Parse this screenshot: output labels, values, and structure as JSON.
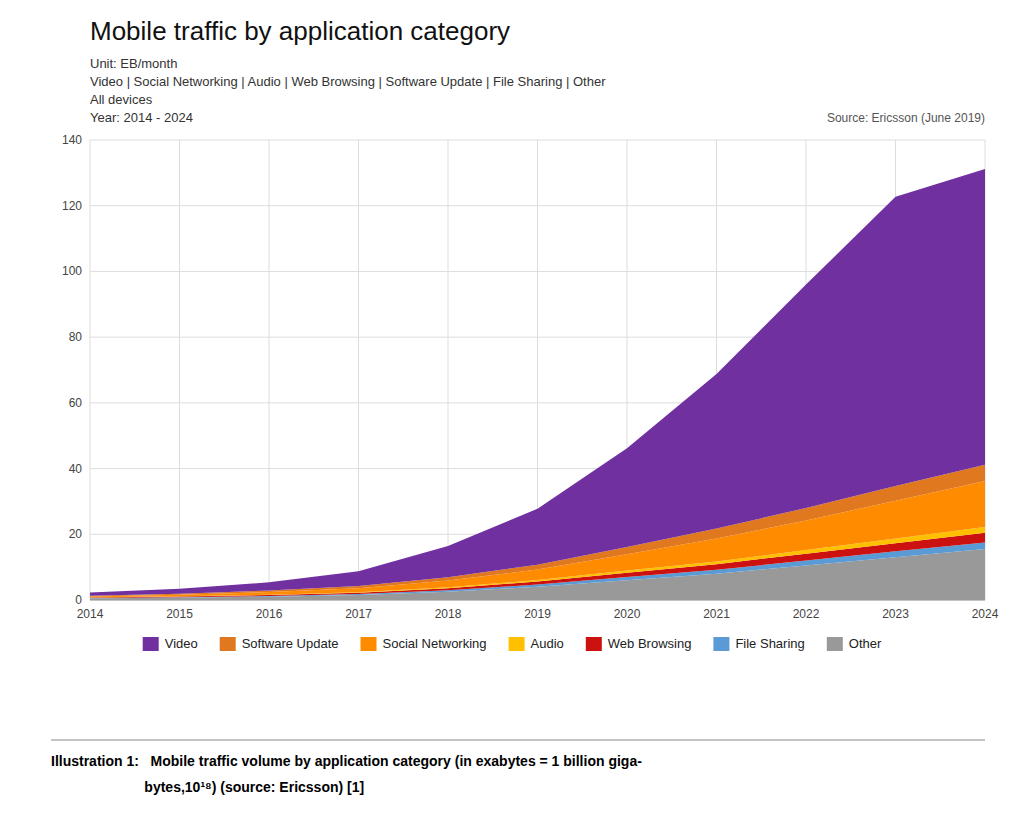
{
  "chart_data": {
    "type": "area",
    "stacked": true,
    "title": "Mobile traffic by application category",
    "subtitle": [
      "Unit: EB/month",
      "Video | Social Networking | Audio | Web Browsing | Software Update | File Sharing | Other",
      "All devices",
      "Year: 2014 - 2024"
    ],
    "annotations": [
      "Source: Ericsson (June 2019)",
      "Illustration 1:   Mobile traffic volume by application category (in exabytes = 1 billion giga-",
      "                        bytes,10¹⁸) (source: Ericsson) [1]"
    ],
    "x": [
      2014,
      2015,
      2016,
      2017,
      2018,
      2019,
      2020,
      2021,
      2022,
      2023,
      2024
    ],
    "series": [
      {
        "name": "Other",
        "color": "#999999",
        "values": [
          0.5,
          0.7,
          1.0,
          1.5,
          2.5,
          4.0,
          6.0,
          8.0,
          10.5,
          13.0,
          15.5
        ]
      },
      {
        "name": "File Sharing",
        "color": "#5b9bd5",
        "values": [
          0.1,
          0.15,
          0.2,
          0.3,
          0.5,
          0.7,
          1.0,
          1.2,
          1.5,
          1.8,
          2.0
        ]
      },
      {
        "name": "Web Browsing",
        "color": "#cc1111",
        "values": [
          0.15,
          0.2,
          0.3,
          0.4,
          0.6,
          0.9,
          1.3,
          1.7,
          2.1,
          2.5,
          3.0
        ]
      },
      {
        "name": "Audio",
        "color": "#ffc000",
        "values": [
          0.05,
          0.08,
          0.12,
          0.18,
          0.3,
          0.45,
          0.65,
          0.85,
          1.1,
          1.4,
          1.7
        ]
      },
      {
        "name": "Social Networking",
        "color": "#ff8c00",
        "values": [
          0.3,
          0.5,
          0.8,
          1.2,
          2.0,
          3.2,
          5.0,
          7.0,
          9.0,
          11.5,
          14.0
        ]
      },
      {
        "name": "Software Update",
        "color": "#e07820",
        "values": [
          0.2,
          0.3,
          0.45,
          0.65,
          1.0,
          1.5,
          2.2,
          3.0,
          3.8,
          4.5,
          5.0
        ]
      },
      {
        "name": "Video",
        "color": "#7030a0",
        "values": [
          1.0,
          1.5,
          2.5,
          4.5,
          9.5,
          17.0,
          30.0,
          47.0,
          68.0,
          88.0,
          90.0
        ]
      }
    ],
    "xlim": [
      2014,
      2024
    ],
    "xticks": [
      2014,
      2015,
      2016,
      2017,
      2018,
      2019,
      2020,
      2021,
      2022,
      2023,
      2024
    ],
    "ylim": [
      0,
      140
    ],
    "yticks": [
      0,
      20,
      40,
      60,
      80,
      100,
      120,
      140
    ],
    "grid": true,
    "legend": "bottom"
  }
}
